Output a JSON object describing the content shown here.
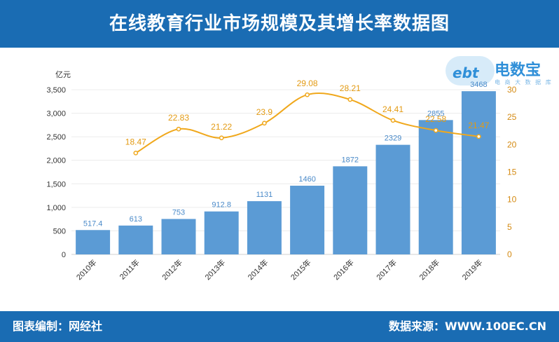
{
  "header": {
    "title": "在线教育行业市场规模及其增长率数据图"
  },
  "footer": {
    "left": "图表编制：网经社",
    "right": "数据来源：WWW.100EC.CN"
  },
  "logo": {
    "cloud_text": "ebt",
    "brand": "电数宝",
    "sub": "电 商 大 数 据 库"
  },
  "colors": {
    "bar": "#5b9bd5",
    "line": "#f0a81c",
    "header": "#1a6cb3",
    "bar_label": "#4a8ac9",
    "line_label": "#e39a12"
  },
  "chart_data": {
    "type": "bar",
    "categories": [
      "2010年",
      "2011年",
      "2012年",
      "2013年",
      "2014年",
      "2015年",
      "2016年",
      "2017年",
      "2018年",
      "2019年"
    ],
    "ylabel": "亿元",
    "ylim": [
      0,
      3500
    ],
    "yticks": [
      "0",
      "500",
      "1,000",
      "1,500",
      "2,000",
      "2,500",
      "3,000",
      "3,500"
    ],
    "y2lim": [
      0,
      30
    ],
    "y2ticks": [
      "0",
      "5",
      "10",
      "15",
      "20",
      "25",
      "30"
    ],
    "series": [
      {
        "type": "bar",
        "values": [
          517.4,
          613,
          753,
          912.8,
          1131,
          1460,
          1872,
          2329,
          2855,
          3468
        ],
        "labels": [
          "517.4",
          "613",
          "753",
          "912.8",
          "1131",
          "1460",
          "1872",
          "2329",
          "2855",
          "3468"
        ]
      },
      {
        "type": "line",
        "axis": "right",
        "values": [
          null,
          18.47,
          22.83,
          21.22,
          23.9,
          29.08,
          28.21,
          24.41,
          22.58,
          21.47
        ],
        "labels": [
          "",
          "18.47",
          "22.83",
          "21.22",
          "23.9",
          "29.08",
          "28.21",
          "24.41",
          "22.58",
          "21.47"
        ]
      }
    ],
    "grid": true
  }
}
